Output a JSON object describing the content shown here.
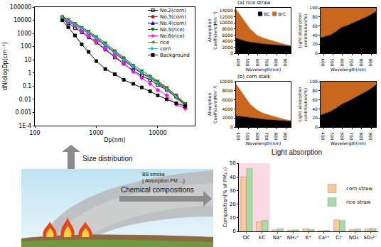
{
  "chart_data": [
    {
      "type": "line",
      "x_label": "Dp(nm)",
      "y_label": "dN/dlogDp(cm⁻³)",
      "x": [
        280,
        350,
        450,
        580,
        750,
        1000,
        1400,
        2000,
        2800,
        4000,
        5500,
        7500,
        10000,
        14000,
        20000,
        28000
      ],
      "series": [
        {
          "name": "No.2(corn)",
          "color": "#000000",
          "marker": "square-open",
          "values": [
            12000,
            6000,
            2500,
            1200,
            500,
            200,
            60,
            15,
            5,
            1.5,
            0.6,
            0.3,
            0.12,
            0.05,
            0.015,
            0.004
          ]
        },
        {
          "name": "No.3(corn)",
          "color": "#e8000b",
          "marker": "circle",
          "values": [
            18000,
            10000,
            5000,
            2500,
            1200,
            500,
            150,
            40,
            12,
            3,
            1,
            0.5,
            0.2,
            0.07,
            0.02,
            0.004
          ]
        },
        {
          "name": "No.4(corn)",
          "color": "#0000ff",
          "marker": "triangle-up",
          "values": [
            16000,
            9000,
            4500,
            2200,
            1000,
            400,
            120,
            30,
            9,
            2.5,
            0.9,
            0.4,
            0.18,
            0.06,
            0.015,
            0.003
          ]
        },
        {
          "name": "No.5(rice)",
          "color": "#008000",
          "marker": "triangle-down",
          "values": [
            20000,
            12000,
            6000,
            3000,
            1500,
            600,
            200,
            50,
            15,
            4,
            1.5,
            0.6,
            0.25,
            0.08,
            0.02,
            0.005
          ]
        },
        {
          "name": "No.6(rice)",
          "color": "#ff00ff",
          "marker": "diamond",
          "values": [
            14000,
            8000,
            3500,
            1500,
            600,
            250,
            70,
            18,
            5,
            1.2,
            0.4,
            0.15,
            0.05,
            0.02,
            0.004,
            0.002
          ]
        },
        {
          "name": "rice",
          "color": "#808000",
          "marker": "triangle-left",
          "values": [
            17000,
            10000,
            5000,
            2400,
            1100,
            450,
            140,
            35,
            10,
            3,
            1,
            0.4,
            0.15,
            0.05,
            0.012,
            0.003
          ]
        },
        {
          "name": "corn",
          "color": "#1fb4d8",
          "marker": "triangle-right",
          "values": [
            15000,
            9000,
            4500,
            2300,
            1100,
            450,
            140,
            35,
            10,
            3,
            1.1,
            0.45,
            0.18,
            0.06,
            0.015,
            0.003
          ]
        },
        {
          "name": "Background",
          "color": "#000000",
          "marker": "square",
          "values": [
            10000,
            3000,
            700,
            150,
            40,
            8,
            2,
            0.8,
            0.3,
            0.15,
            0.08,
            0.04,
            0.02,
            0.01,
            0.005,
            0.003
          ]
        }
      ],
      "log": true,
      "xlim": [
        100,
        40000
      ],
      "ylim": [
        0.0001,
        100000
      ],
      "xticks": [
        100,
        1000,
        10000
      ],
      "yticks": [
        {
          "value": 0.0001,
          "label": "1E-4"
        },
        0.001,
        0.01,
        0.1,
        1,
        10,
        100,
        1000,
        10000,
        100000
      ],
      "grid": false,
      "legend": "top-right"
    },
    {
      "type": "area",
      "title": "(a) rice straw",
      "x_label": "Wavelength(nm)",
      "y_label": "Absorption Coefficient(Mm⁻¹)",
      "x": [
        370,
        470,
        520,
        590,
        660,
        880,
        950
      ],
      "series": [
        {
          "name": "BC",
          "color": "#000000",
          "values": [
            5000,
            4000,
            3700,
            3400,
            3100,
            2500,
            2300
          ]
        },
        {
          "name": "BrC",
          "color": "#c8661e",
          "values": [
            9500,
            6000,
            4300,
            2600,
            1900,
            500,
            200
          ]
        }
      ],
      "stacked": true,
      "xlim": [
        370,
        950
      ],
      "ylim": [
        0,
        15000
      ],
      "xticks": [
        400,
        500,
        600,
        700,
        800,
        900
      ],
      "yticks": [
        0,
        2000,
        4000,
        6000,
        8000,
        10000,
        12000,
        14000
      ],
      "grid": false,
      "legend": "top-right"
    },
    {
      "type": "area",
      "x_label": "Wavelength(nm)",
      "y_label": "Light absorption contribution(%)",
      "x": [
        370,
        470,
        520,
        590,
        660,
        880,
        950
      ],
      "series": [
        {
          "name": "BC",
          "color": "#000000",
          "values": [
            34,
            40,
            46,
            57,
            62,
            83,
            92
          ]
        },
        {
          "name": "BrC",
          "color": "#c8661e",
          "values": [
            66,
            60,
            54,
            43,
            38,
            17,
            8
          ]
        }
      ],
      "stacked": true,
      "xlim": [
        370,
        950
      ],
      "ylim": [
        0,
        100
      ],
      "xticks": [
        400,
        500,
        600,
        700,
        800,
        900
      ],
      "yticks": [
        0,
        20,
        40,
        60,
        80,
        100
      ],
      "grid": false
    },
    {
      "type": "area",
      "title": "(b) corn stalk",
      "x_label": "Wavelength(nm)",
      "y_label": "Absorption Coefficient(Mm⁻¹)",
      "x": [
        370,
        470,
        520,
        590,
        660,
        880,
        950
      ],
      "series": [
        {
          "name": "BC",
          "color": "#000000",
          "values": [
            2500,
            2200,
            2000,
            1900,
            1700,
            1400,
            1300
          ]
        },
        {
          "name": "BrC",
          "color": "#c8661e",
          "values": [
            7000,
            4300,
            3000,
            1900,
            1300,
            300,
            100
          ]
        }
      ],
      "stacked": true,
      "xlim": [
        370,
        950
      ],
      "ylim": [
        0,
        10000
      ],
      "xticks": [
        400,
        500,
        600,
        700,
        800,
        900
      ],
      "yticks": [
        0,
        2000,
        4000,
        6000,
        8000,
        10000
      ],
      "grid": false
    },
    {
      "type": "area",
      "x_label": "Wavelength(nm)",
      "y_label": "Light absorption contribution(%)",
      "x": [
        370,
        470,
        520,
        590,
        660,
        880,
        950
      ],
      "series": [
        {
          "name": "BC",
          "color": "#000000",
          "values": [
            26,
            34,
            40,
            50,
            57,
            82,
            93
          ]
        },
        {
          "name": "BrC",
          "color": "#c8661e",
          "values": [
            74,
            66,
            60,
            50,
            43,
            18,
            7
          ]
        }
      ],
      "stacked": true,
      "xlim": [
        370,
        950
      ],
      "ylim": [
        0,
        100
      ],
      "xticks": [
        400,
        500,
        600,
        700,
        800,
        900
      ],
      "yticks": [
        0,
        20,
        40,
        60,
        80,
        100
      ],
      "grid": false
    },
    {
      "type": "bar",
      "y_label": "Composition(% of PM₂.₅)",
      "categories": [
        "OC",
        "EC",
        "Na⁺",
        "NH₄⁺",
        "K⁺",
        "Ca²⁺",
        "Cl⁻",
        "NO₃⁻",
        "SO₄²⁻"
      ],
      "series": [
        {
          "name": "corn straw",
          "color": "#f9c89b",
          "values": [
            40,
            7,
            1.2,
            1,
            2,
            0.5,
            8.5,
            1.5,
            2
          ]
        },
        {
          "name": "rice straw",
          "color": "#a8dba8",
          "values": [
            46,
            8,
            2,
            1.2,
            1.5,
            0.7,
            8,
            1.8,
            2.2
          ]
        }
      ],
      "ylim": [
        0,
        50
      ],
      "yticks": [
        0,
        10,
        20,
        30,
        40,
        50
      ],
      "grid": false,
      "legend": "right"
    }
  ],
  "labels": {
    "size_distribution": "Size distribution",
    "light_absorption": "Light absorption",
    "chemical_compositions": "Chemical compositions",
    "illustration": [
      "BB smoke",
      "( Absorption PM ...)"
    ]
  }
}
